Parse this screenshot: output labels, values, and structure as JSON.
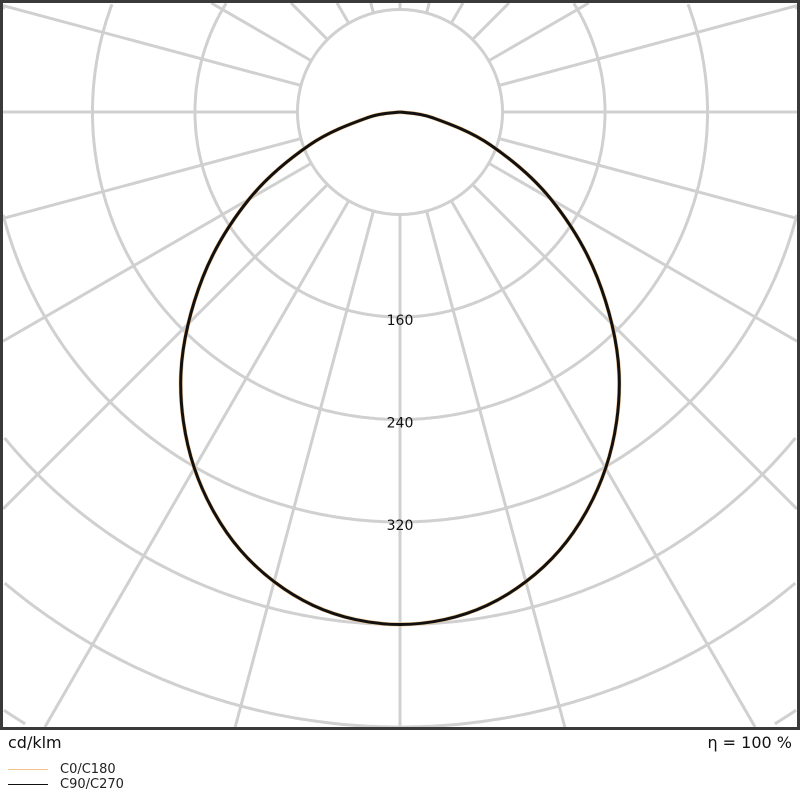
{
  "chart_data": {
    "type": "polar",
    "unit_label": "cd/klm",
    "efficiency_label": "η = 100 %",
    "ring_step": 80,
    "ring_labels": [
      "160",
      "240",
      "320"
    ],
    "radial_step_deg": 15,
    "grid": true,
    "legend_placement": "bottom-left",
    "series": [
      {
        "name": "C0/C180",
        "color": "#f5c58e",
        "angles": [
          0,
          10,
          20,
          30,
          40,
          50,
          60,
          70,
          80,
          90
        ],
        "values": [
          400,
          391,
          364,
          321,
          266,
          201,
          136,
          75,
          26,
          0
        ]
      },
      {
        "name": "C90/C270",
        "color": "#111111",
        "angles": [
          0,
          10,
          20,
          30,
          40,
          50,
          60,
          70,
          80,
          90
        ],
        "values": [
          400,
          391,
          364,
          321,
          266,
          201,
          136,
          75,
          26,
          0
        ]
      }
    ]
  }
}
